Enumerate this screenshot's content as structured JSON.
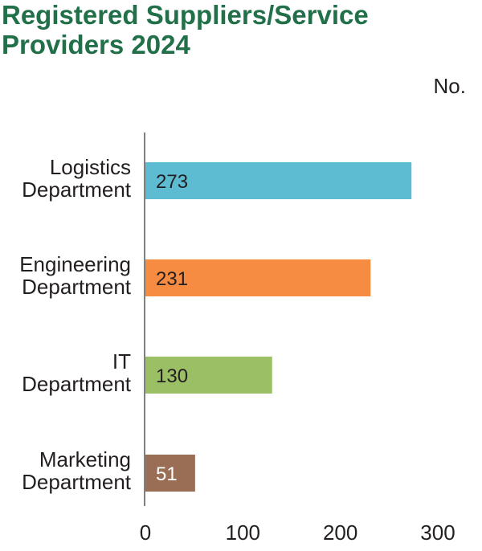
{
  "title": "Registered Suppliers/Service Providers 2024",
  "unit_label": "No.",
  "chart_data": {
    "type": "bar",
    "orientation": "horizontal",
    "title": "Registered Suppliers/Service Providers 2024",
    "ylabel": "No.",
    "categories": [
      [
        "Logistics",
        "Department"
      ],
      [
        "Engineering",
        "Department"
      ],
      [
        "IT",
        "Department"
      ],
      [
        "Marketing",
        "Department"
      ]
    ],
    "values": [
      273,
      231,
      130,
      51
    ],
    "colors": [
      "#5dbcd2",
      "#f68b42",
      "#9bbf65",
      "#9a6e54"
    ],
    "label_colors": [
      "#231f20",
      "#231f20",
      "#231f20",
      "#ffffff"
    ],
    "xticks": [
      0,
      100,
      200,
      300
    ],
    "xlim": [
      0,
      300
    ],
    "grid": false,
    "legend": "none"
  }
}
